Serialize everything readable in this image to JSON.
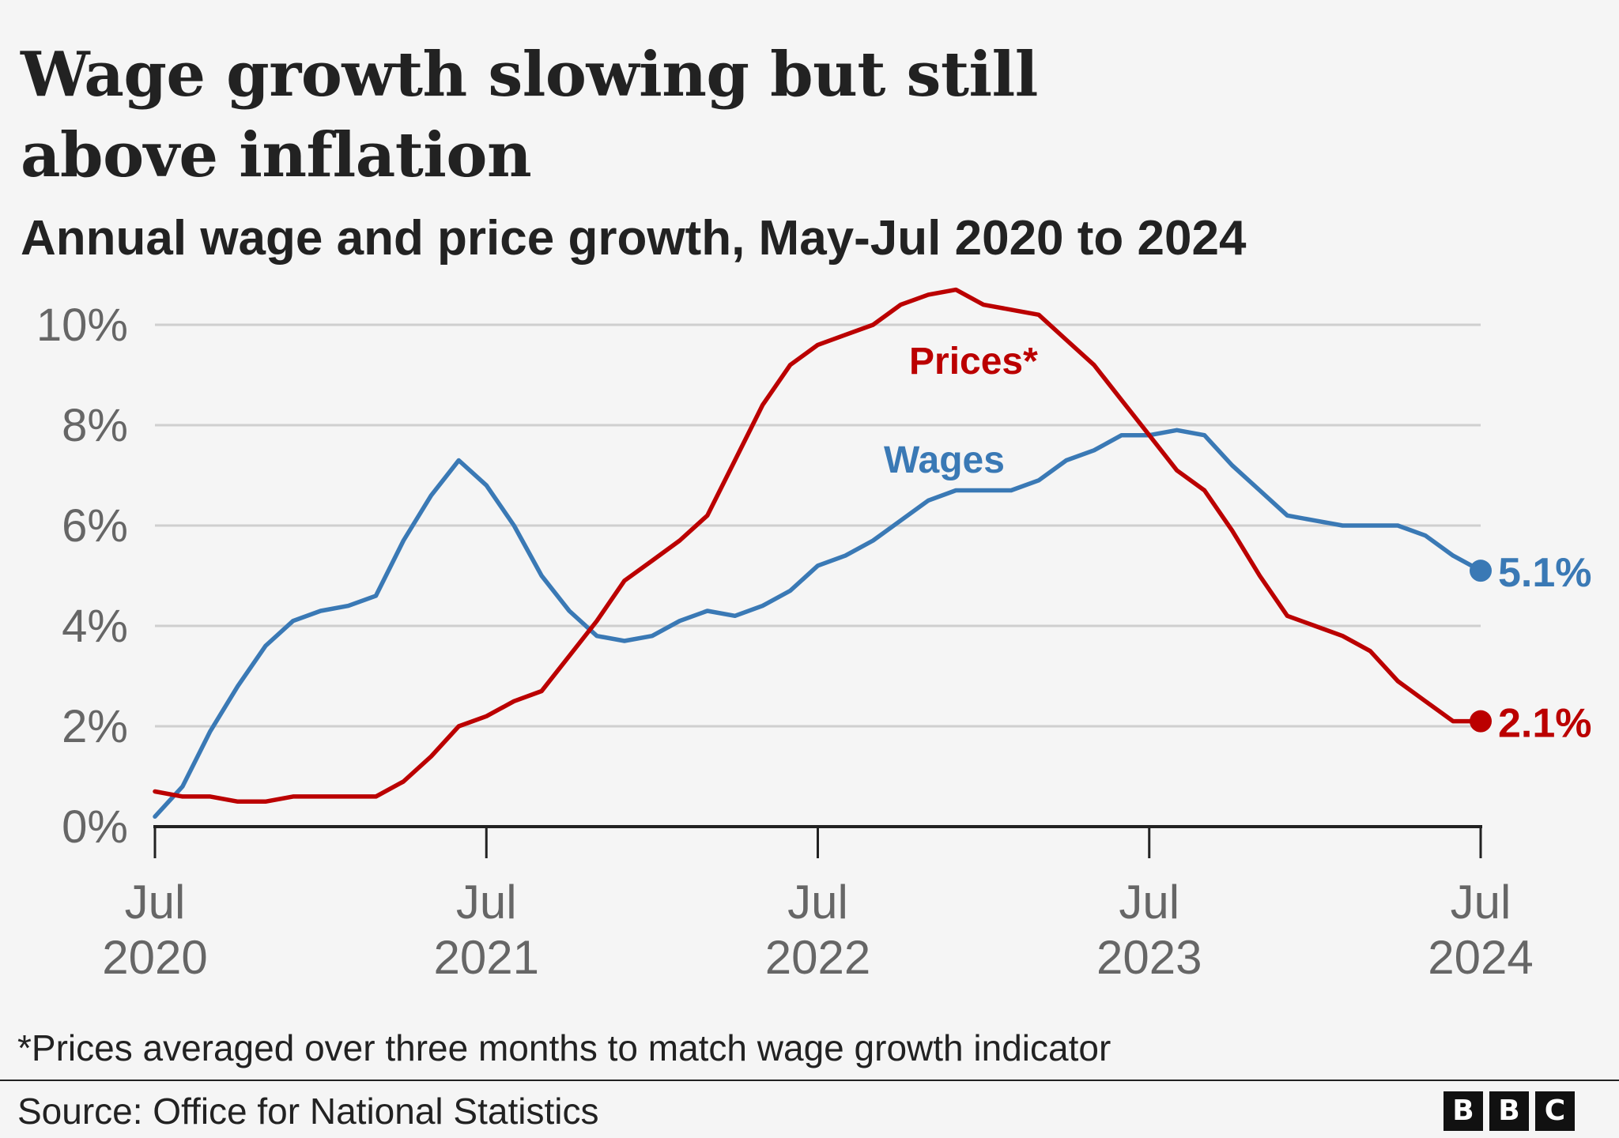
{
  "header": {
    "title": "Wage growth slowing but still above inflation",
    "subtitle": "Annual wage and price growth, May-Jul 2020 to 2024"
  },
  "footer": {
    "footnote": "*Prices averaged over three months to match wage growth indicator",
    "source": "Source: Office for National Statistics",
    "logo_letters": [
      "B",
      "B",
      "C"
    ]
  },
  "colors": {
    "background": "#f5f5f5",
    "wages": "#3a79b5",
    "prices": "#bb0000",
    "gridline": "#cfcfcf",
    "axis": "#222222",
    "tick_text": "#666666"
  },
  "chart_data": {
    "type": "line",
    "title": "Wage growth slowing but still above inflation",
    "subtitle": "Annual wage and price growth, May-Jul 2020 to 2024",
    "x_start_label": "Jul 2020",
    "x_step": "1 month",
    "x_ticks": [
      {
        "index": 0,
        "line1": "Jul",
        "line2": "2020"
      },
      {
        "index": 12,
        "line1": "Jul",
        "line2": "2021"
      },
      {
        "index": 24,
        "line1": "Jul",
        "line2": "2022"
      },
      {
        "index": 36,
        "line1": "Jul",
        "line2": "2023"
      },
      {
        "index": 48,
        "line1": "Jul",
        "line2": "2024"
      }
    ],
    "ylim": [
      0,
      10
    ],
    "y_ticks": [
      {
        "value": 0,
        "label": "0%"
      },
      {
        "value": 2,
        "label": "2%"
      },
      {
        "value": 4,
        "label": "4%"
      },
      {
        "value": 6,
        "label": "6%"
      },
      {
        "value": 8,
        "label": "8%"
      },
      {
        "value": 10,
        "label": "10%"
      }
    ],
    "grid": true,
    "series": [
      {
        "name": "Wages",
        "label": "Wages",
        "end_label": "5.1%",
        "values": [
          0.2,
          0.8,
          1.9,
          2.8,
          3.6,
          4.1,
          4.3,
          4.4,
          4.6,
          5.7,
          6.6,
          7.3,
          6.8,
          6.0,
          5.0,
          4.3,
          3.8,
          3.7,
          3.8,
          4.1,
          4.3,
          4.2,
          4.4,
          4.7,
          5.2,
          5.4,
          5.7,
          6.1,
          6.5,
          6.7,
          6.7,
          6.7,
          6.9,
          7.3,
          7.5,
          7.8,
          7.8,
          7.9,
          7.8,
          7.2,
          6.7,
          6.2,
          6.1,
          6.0,
          6.0,
          6.0,
          5.8,
          5.4,
          5.1
        ]
      },
      {
        "name": "Prices*",
        "label": "Prices*",
        "end_label": "2.1%",
        "values": [
          0.7,
          0.6,
          0.6,
          0.5,
          0.5,
          0.6,
          0.6,
          0.6,
          0.6,
          0.9,
          1.4,
          2.0,
          2.2,
          2.5,
          2.7,
          3.4,
          4.1,
          4.9,
          5.3,
          5.7,
          6.2,
          7.3,
          8.4,
          9.2,
          9.6,
          9.8,
          10.0,
          10.4,
          10.6,
          10.7,
          10.4,
          10.3,
          10.2,
          9.7,
          9.2,
          8.5,
          7.8,
          7.1,
          6.7,
          5.9,
          5.0,
          4.2,
          4.0,
          3.8,
          3.5,
          2.9,
          2.5,
          2.1,
          2.1
        ]
      }
    ]
  }
}
